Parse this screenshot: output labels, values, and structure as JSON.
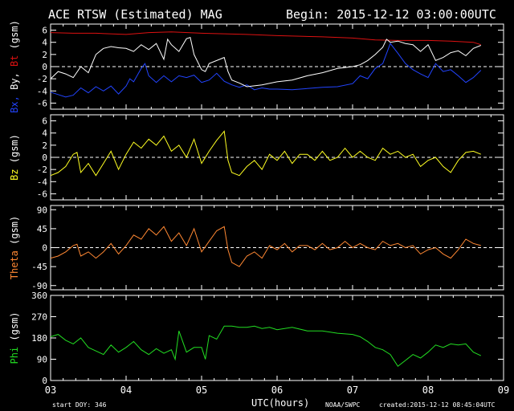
{
  "header": {
    "title": "ACE RTSW (Estimated) MAG",
    "begin": "Begin: 2015-12-12 03:00:00UTC"
  },
  "footer": {
    "start_doy": "start DOY:  346",
    "xlabel": "UTC(hours)",
    "agency": "NOAA/SWPC",
    "created": "created:2015-12-12 08:45:04UTC"
  },
  "colors": {
    "background": "#000000",
    "axes": "#ffffff",
    "bx": "#2244ff",
    "by": "#ffffff",
    "bt": "#dd1111",
    "bz": "#ffff22",
    "theta": "#ff8833",
    "phi": "#22dd22"
  },
  "chart_data": [
    {
      "type": "line",
      "ylabel_parts": [
        {
          "text": "Bx,",
          "color_key": "bx"
        },
        {
          "text": "By,",
          "color_key": "by"
        },
        {
          "text": "Bt",
          "color_key": "bt"
        },
        {
          "text": "(gsm)",
          "color_key": "by"
        }
      ],
      "xlim": [
        3,
        9
      ],
      "ylim": [
        -7,
        7
      ],
      "yticks": [
        -6,
        -4,
        -2,
        0,
        2,
        4,
        6
      ],
      "zero_line": true,
      "series": [
        {
          "color_key": "bt",
          "x": [
            3.0,
            3.3,
            3.6,
            4.0,
            4.3,
            4.6,
            5.0,
            5.3,
            5.6,
            6.0,
            6.3,
            6.6,
            7.0,
            7.3,
            7.6,
            8.0,
            8.3,
            8.6,
            8.7
          ],
          "y": [
            5.6,
            5.5,
            5.5,
            5.3,
            5.6,
            5.7,
            5.5,
            5.4,
            5.3,
            5.1,
            5.0,
            4.9,
            4.7,
            4.4,
            4.3,
            4.3,
            4.2,
            4.0,
            3.6
          ]
        },
        {
          "color_key": "bx",
          "x": [
            3.0,
            3.1,
            3.2,
            3.3,
            3.4,
            3.5,
            3.6,
            3.7,
            3.8,
            3.9,
            4.0,
            4.05,
            4.1,
            4.2,
            4.25,
            4.3,
            4.4,
            4.5,
            4.6,
            4.7,
            4.8,
            4.9,
            5.0,
            5.1,
            5.2,
            5.3,
            5.4,
            5.5,
            5.6,
            5.7,
            5.8,
            5.9,
            6.0,
            6.2,
            6.4,
            6.6,
            6.8,
            7.0,
            7.1,
            7.2,
            7.3,
            7.4,
            7.5,
            7.6,
            7.7,
            7.8,
            7.9,
            8.0,
            8.1,
            8.2,
            8.3,
            8.4,
            8.5,
            8.6,
            8.7
          ],
          "y": [
            -4.2,
            -4.6,
            -5.0,
            -4.7,
            -3.5,
            -4.3,
            -3.3,
            -4.0,
            -3.2,
            -4.5,
            -3.2,
            -2.0,
            -2.5,
            -0.3,
            0.5,
            -1.5,
            -2.6,
            -1.5,
            -2.5,
            -1.5,
            -1.8,
            -1.4,
            -2.6,
            -2.2,
            -1.1,
            -2.4,
            -3.0,
            -3.4,
            -3.0,
            -3.8,
            -3.5,
            -3.7,
            -3.7,
            -3.8,
            -3.6,
            -3.4,
            -3.3,
            -2.8,
            -1.5,
            -2.0,
            -0.3,
            0.5,
            3.8,
            2.2,
            0.5,
            -0.5,
            -1.2,
            -1.8,
            0.5,
            -0.8,
            -0.5,
            -1.5,
            -2.6,
            -1.8,
            -0.6
          ]
        },
        {
          "color_key": "by",
          "x": [
            3.0,
            3.1,
            3.2,
            3.3,
            3.4,
            3.5,
            3.55,
            3.6,
            3.7,
            3.8,
            3.9,
            4.0,
            4.1,
            4.2,
            4.3,
            4.4,
            4.5,
            4.55,
            4.6,
            4.7,
            4.8,
            4.85,
            4.9,
            5.0,
            5.05,
            5.1,
            5.2,
            5.3,
            5.35,
            5.4,
            5.5,
            5.6,
            5.8,
            6.0,
            6.2,
            6.4,
            6.6,
            6.8,
            7.0,
            7.1,
            7.2,
            7.3,
            7.4,
            7.45,
            7.5,
            7.6,
            7.7,
            7.8,
            7.9,
            8.0,
            8.1,
            8.2,
            8.3,
            8.4,
            8.5,
            8.6,
            8.7
          ],
          "y": [
            -2.0,
            -0.8,
            -1.2,
            -1.8,
            0.0,
            -1.0,
            0.5,
            2.0,
            3.0,
            3.3,
            3.1,
            3.0,
            2.5,
            3.6,
            2.8,
            3.8,
            1.2,
            4.5,
            3.6,
            2.5,
            4.6,
            4.8,
            2.0,
            -0.5,
            -0.8,
            0.5,
            1.0,
            1.5,
            -0.8,
            -2.2,
            -2.7,
            -3.3,
            -3.0,
            -2.5,
            -2.2,
            -1.5,
            -1.0,
            -0.3,
            0.0,
            0.3,
            1.0,
            2.0,
            3.2,
            4.5,
            4.0,
            4.2,
            3.8,
            3.6,
            2.5,
            3.6,
            1.0,
            1.5,
            2.3,
            2.6,
            1.8,
            3.0,
            3.5
          ]
        }
      ]
    },
    {
      "type": "line",
      "ylabel_parts": [
        {
          "text": "Bz",
          "color_key": "bz"
        },
        {
          "text": "(gsm)",
          "color_key": "by"
        }
      ],
      "xlim": [
        3,
        9
      ],
      "ylim": [
        -7,
        7
      ],
      "yticks": [
        -6,
        -4,
        -2,
        0,
        2,
        4,
        6
      ],
      "zero_line": true,
      "series": [
        {
          "color_key": "bz",
          "x": [
            3.0,
            3.1,
            3.2,
            3.3,
            3.35,
            3.4,
            3.5,
            3.6,
            3.7,
            3.8,
            3.9,
            4.0,
            4.1,
            4.2,
            4.3,
            4.4,
            4.5,
            4.6,
            4.7,
            4.8,
            4.9,
            5.0,
            5.1,
            5.2,
            5.3,
            5.35,
            5.4,
            5.5,
            5.6,
            5.7,
            5.8,
            5.9,
            6.0,
            6.1,
            6.2,
            6.3,
            6.4,
            6.5,
            6.6,
            6.7,
            6.8,
            6.9,
            7.0,
            7.1,
            7.2,
            7.3,
            7.4,
            7.5,
            7.6,
            7.7,
            7.8,
            7.9,
            8.0,
            8.1,
            8.2,
            8.3,
            8.4,
            8.5,
            8.6,
            8.7
          ],
          "y": [
            -3.0,
            -2.5,
            -1.5,
            0.5,
            0.8,
            -2.5,
            -1.0,
            -3.0,
            -1.0,
            1.0,
            -2.0,
            0.5,
            2.5,
            1.5,
            3.0,
            2.0,
            3.5,
            1.0,
            2.0,
            0.0,
            3.0,
            -1.0,
            1.0,
            2.8,
            4.3,
            -0.5,
            -2.5,
            -3.0,
            -1.5,
            -0.5,
            -2.0,
            0.5,
            -0.5,
            1.0,
            -1.0,
            0.5,
            0.5,
            -0.5,
            1.0,
            -0.5,
            0.0,
            1.5,
            0.0,
            1.0,
            0.0,
            -0.5,
            1.5,
            0.5,
            1.0,
            0.0,
            0.5,
            -1.5,
            -0.5,
            0.0,
            -1.5,
            -2.5,
            -0.5,
            0.8,
            1.0,
            0.5
          ]
        }
      ]
    },
    {
      "type": "line",
      "ylabel_parts": [
        {
          "text": "Theta",
          "color_key": "theta"
        },
        {
          "text": "(gsm)",
          "color_key": "by"
        }
      ],
      "xlim": [
        3,
        9
      ],
      "ylim": [
        -100,
        100
      ],
      "yticks": [
        -90,
        -45,
        0,
        45,
        90
      ],
      "zero_line": true,
      "series": [
        {
          "color_key": "theta",
          "x": [
            3.0,
            3.1,
            3.2,
            3.3,
            3.35,
            3.4,
            3.5,
            3.6,
            3.7,
            3.8,
            3.9,
            4.0,
            4.1,
            4.2,
            4.3,
            4.4,
            4.5,
            4.6,
            4.7,
            4.8,
            4.9,
            5.0,
            5.1,
            5.2,
            5.3,
            5.35,
            5.4,
            5.5,
            5.6,
            5.7,
            5.8,
            5.9,
            6.0,
            6.1,
            6.2,
            6.3,
            6.4,
            6.5,
            6.6,
            6.7,
            6.8,
            6.9,
            7.0,
            7.1,
            7.2,
            7.3,
            7.4,
            7.5,
            7.6,
            7.7,
            7.8,
            7.9,
            8.0,
            8.1,
            8.2,
            8.3,
            8.4,
            8.5,
            8.6,
            8.7
          ],
          "y": [
            -25,
            -20,
            -10,
            5,
            8,
            -20,
            -10,
            -25,
            -10,
            10,
            -15,
            5,
            30,
            20,
            45,
            30,
            50,
            15,
            35,
            5,
            45,
            -10,
            15,
            40,
            50,
            -5,
            -35,
            -45,
            -20,
            -10,
            -25,
            5,
            -5,
            10,
            -10,
            5,
            5,
            -5,
            10,
            -5,
            0,
            15,
            0,
            10,
            0,
            -5,
            15,
            5,
            10,
            0,
            5,
            -15,
            -5,
            0,
            -15,
            -25,
            -5,
            20,
            10,
            5
          ]
        }
      ]
    },
    {
      "type": "line",
      "ylabel_parts": [
        {
          "text": "Phi",
          "color_key": "phi"
        },
        {
          "text": "(gsm)",
          "color_key": "by"
        }
      ],
      "xlim": [
        3,
        9
      ],
      "ylim": [
        0,
        360
      ],
      "yticks": [
        0,
        90,
        180,
        270,
        360
      ],
      "zero_line": false,
      "series": [
        {
          "color_key": "phi",
          "x": [
            3.0,
            3.1,
            3.2,
            3.3,
            3.4,
            3.5,
            3.6,
            3.7,
            3.8,
            3.9,
            4.0,
            4.1,
            4.2,
            4.3,
            4.4,
            4.5,
            4.6,
            4.65,
            4.7,
            4.8,
            4.9,
            5.0,
            5.05,
            5.1,
            5.2,
            5.3,
            5.4,
            5.5,
            5.6,
            5.7,
            5.8,
            5.9,
            6.0,
            6.2,
            6.4,
            6.6,
            6.8,
            7.0,
            7.1,
            7.2,
            7.3,
            7.4,
            7.5,
            7.6,
            7.7,
            7.8,
            7.9,
            8.0,
            8.1,
            8.2,
            8.3,
            8.4,
            8.5,
            8.6,
            8.7
          ],
          "y": [
            185,
            195,
            170,
            155,
            180,
            140,
            125,
            110,
            150,
            120,
            140,
            165,
            130,
            110,
            135,
            115,
            130,
            90,
            210,
            120,
            140,
            140,
            90,
            190,
            175,
            230,
            230,
            225,
            225,
            230,
            220,
            225,
            215,
            225,
            210,
            210,
            200,
            195,
            185,
            165,
            140,
            130,
            110,
            60,
            85,
            110,
            95,
            120,
            150,
            140,
            155,
            150,
            155,
            120,
            105
          ]
        }
      ]
    }
  ]
}
